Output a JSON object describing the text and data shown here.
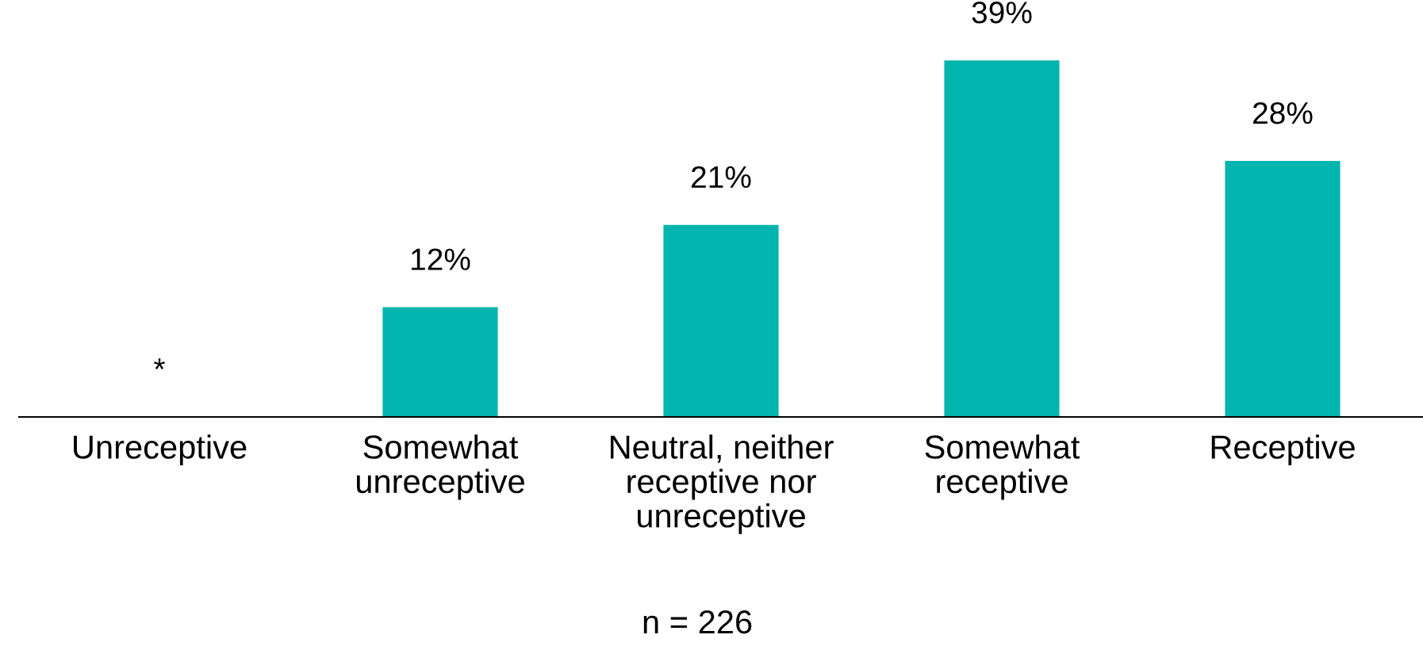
{
  "chart_data": {
    "type": "bar",
    "categories": [
      "Unreceptive",
      "Somewhat\nunreceptive",
      "Neutral, neither\nreceptive nor\nunreceptive",
      "Somewhat\nreceptive",
      "Receptive"
    ],
    "values": [
      0,
      12,
      21,
      39,
      28
    ],
    "value_labels": [
      "*",
      "12%",
      "21%",
      "39%",
      "28%"
    ],
    "color": "#00b5ad",
    "annotations": [
      "n = 226"
    ]
  }
}
